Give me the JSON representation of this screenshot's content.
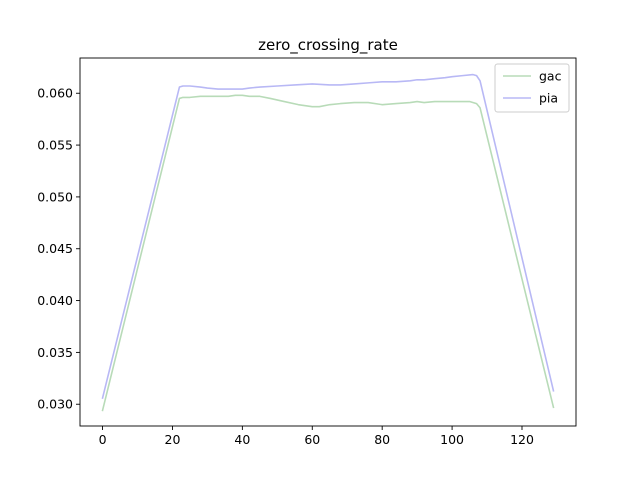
{
  "chart_data": {
    "type": "line",
    "title": "zero_crossing_rate",
    "xlabel": "",
    "ylabel": "",
    "xlim": [
      -6.45,
      135.45
    ],
    "ylim": [
      0.0279,
      0.0634
    ],
    "xticks": [
      0,
      20,
      40,
      60,
      80,
      100,
      120
    ],
    "yticks": [
      0.03,
      0.035,
      0.04,
      0.045,
      0.05,
      0.055,
      0.06
    ],
    "ytick_labels": [
      "0.030",
      "0.035",
      "0.040",
      "0.045",
      "0.050",
      "0.055",
      "0.060"
    ],
    "grid": false,
    "legend_position": "top-right",
    "series": [
      {
        "name": "gac",
        "color": "#b8dbb8",
        "x": [
          0,
          22,
          23,
          25,
          28,
          30,
          33,
          36,
          38,
          40,
          42,
          45,
          48,
          52,
          56,
          58,
          60,
          62,
          65,
          68,
          72,
          76,
          80,
          84,
          88,
          90,
          92,
          95,
          98,
          100,
          103,
          105,
          107,
          108,
          129
        ],
        "y": [
          0.0294,
          0.0595,
          0.0596,
          0.0596,
          0.0597,
          0.0597,
          0.0597,
          0.0597,
          0.0598,
          0.0598,
          0.0597,
          0.0597,
          0.0595,
          0.0592,
          0.0589,
          0.0588,
          0.0587,
          0.0587,
          0.0589,
          0.059,
          0.0591,
          0.0591,
          0.0589,
          0.059,
          0.0591,
          0.0592,
          0.0591,
          0.0592,
          0.0592,
          0.0592,
          0.0592,
          0.0592,
          0.059,
          0.0586,
          0.0297
        ]
      },
      {
        "name": "pia",
        "color": "#b8b8f5",
        "x": [
          0,
          22,
          23,
          25,
          28,
          30,
          33,
          36,
          38,
          40,
          42,
          45,
          50,
          55,
          60,
          65,
          68,
          72,
          76,
          80,
          84,
          88,
          90,
          92,
          95,
          98,
          100,
          103,
          106,
          107,
          108,
          129
        ],
        "y": [
          0.0306,
          0.0606,
          0.0607,
          0.0607,
          0.0606,
          0.0605,
          0.0604,
          0.0604,
          0.0604,
          0.0604,
          0.0605,
          0.0606,
          0.0607,
          0.0608,
          0.0609,
          0.0608,
          0.0608,
          0.0609,
          0.061,
          0.0611,
          0.0611,
          0.0612,
          0.0613,
          0.0613,
          0.0614,
          0.0615,
          0.0616,
          0.0617,
          0.0618,
          0.0617,
          0.0612,
          0.0313
        ]
      }
    ]
  }
}
